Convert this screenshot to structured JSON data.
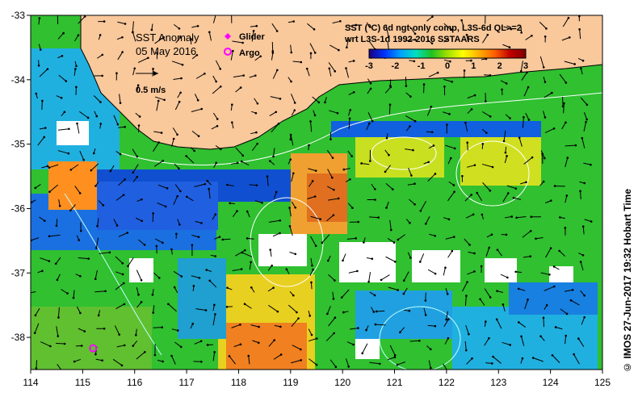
{
  "map": {
    "title": "SST Anomaly",
    "date": "05 May 2016",
    "velocity_scale_label": "0.5 m/s",
    "legend": [
      {
        "label": "Glider",
        "color": "#ff00ff",
        "marker": "diamond"
      },
      {
        "label": "Argo",
        "color": "#ff00ff",
        "marker": "circle"
      }
    ],
    "product_line1": "SST (°C) 6d ngt-only comp, L3S-6d QL>=2",
    "product_line2": "wrt L3S-1d 1992-2016 SSTAARS",
    "colorbar": {
      "ticks": [
        "-3",
        "-2",
        "-1",
        "0",
        "1",
        "2",
        "3"
      ],
      "colors": [
        "#1a0080",
        "#0033ff",
        "#00a0ff",
        "#00e0c0",
        "#20c020",
        "#a0e000",
        "#ffff00",
        "#ffb000",
        "#ff6000",
        "#c00000",
        "#800000"
      ]
    },
    "x_ticks": [
      "114",
      "115",
      "116",
      "117",
      "118",
      "119",
      "120",
      "121",
      "122",
      "123",
      "124",
      "125"
    ],
    "y_ticks": [
      "-33",
      "-34",
      "-35",
      "-36",
      "-37",
      "-38"
    ],
    "lon_range": [
      114,
      125
    ],
    "lat_range": [
      -38.5,
      -33
    ],
    "land_color": "#f9c89b",
    "argo_position": {
      "lon": 115.2,
      "lat": -38.17
    },
    "credit": "© IMOS 27-Jun-2017 19:32 Hobart Time"
  }
}
